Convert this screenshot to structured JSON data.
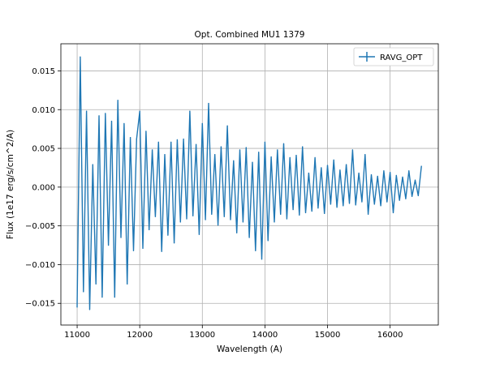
{
  "chart_data": {
    "type": "line",
    "title": "Opt. Combined MU1 1379",
    "xlabel": "Wavelength (A)",
    "ylabel": "Flux (1e17 erg/s/cm^2/A)",
    "xlim": [
      10740,
      16770
    ],
    "ylim": [
      -0.0178,
      0.0185
    ],
    "xticks": [
      11000,
      12000,
      13000,
      14000,
      15000,
      16000
    ],
    "xtick_labels": [
      "11000",
      "12000",
      "13000",
      "14000",
      "15000",
      "16000"
    ],
    "yticks": [
      -0.015,
      -0.01,
      -0.005,
      0.0,
      0.005,
      0.01,
      0.015
    ],
    "ytick_labels": [
      "−0.015",
      "−0.010",
      "−0.005",
      "0.000",
      "0.005",
      "0.010",
      "0.015"
    ],
    "grid": true,
    "legend": {
      "position": "top-right"
    },
    "series": [
      {
        "name": "RAVG_OPT",
        "color": "#1f77b4",
        "x": [
          11000,
          11050,
          11100,
          11150,
          11200,
          11250,
          11300,
          11350,
          11400,
          11450,
          11500,
          11550,
          11600,
          11650,
          11700,
          11750,
          11800,
          11850,
          11900,
          11950,
          12000,
          12050,
          12100,
          12150,
          12200,
          12250,
          12300,
          12350,
          12400,
          12450,
          12500,
          12550,
          12600,
          12650,
          12700,
          12750,
          12800,
          12850,
          12900,
          12950,
          13000,
          13050,
          13100,
          13150,
          13200,
          13250,
          13300,
          13350,
          13400,
          13450,
          13500,
          13550,
          13600,
          13650,
          13700,
          13750,
          13800,
          13850,
          13900,
          13950,
          14000,
          14050,
          14100,
          14150,
          14200,
          14250,
          14300,
          14350,
          14400,
          14450,
          14500,
          14550,
          14600,
          14650,
          14700,
          14750,
          14800,
          14850,
          14900,
          14950,
          15000,
          15050,
          15100,
          15150,
          15200,
          15250,
          15300,
          15350,
          15400,
          15450,
          15500,
          15550,
          15600,
          15650,
          15700,
          15750,
          15800,
          15850,
          15900,
          15950,
          16000,
          16050,
          16100,
          16150,
          16200,
          16250,
          16300,
          16350,
          16400,
          16450,
          16500
        ],
        "y": [
          -0.0155,
          0.0168,
          -0.0135,
          0.0098,
          -0.0158,
          0.0029,
          -0.0125,
          0.0092,
          -0.0142,
          0.0095,
          -0.0075,
          0.0085,
          -0.0142,
          0.0112,
          -0.0065,
          0.0082,
          -0.0125,
          0.0064,
          -0.0082,
          0.0062,
          0.0098,
          -0.0079,
          0.0072,
          -0.0055,
          0.0048,
          -0.0038,
          0.0058,
          -0.0083,
          0.0042,
          -0.0062,
          0.0058,
          -0.0072,
          0.0061,
          -0.0045,
          0.0062,
          -0.0041,
          0.0098,
          -0.0037,
          0.0055,
          -0.0061,
          0.0082,
          -0.0042,
          0.0108,
          -0.0035,
          0.0042,
          -0.0049,
          0.0052,
          -0.0038,
          0.0079,
          -0.0042,
          0.0034,
          -0.0059,
          0.0048,
          -0.0045,
          0.0051,
          -0.0065,
          0.0032,
          -0.0082,
          0.0045,
          -0.0093,
          0.0058,
          -0.0069,
          0.0039,
          -0.0045,
          0.0048,
          -0.0035,
          0.0056,
          -0.0041,
          0.0038,
          -0.0029,
          0.0041,
          -0.0036,
          0.0052,
          -0.0033,
          0.0018,
          -0.0031,
          0.0038,
          -0.0027,
          0.0025,
          -0.0034,
          0.0028,
          -0.0022,
          0.0035,
          -0.0026,
          0.0022,
          -0.0024,
          0.0029,
          -0.0021,
          0.0048,
          -0.0023,
          0.0018,
          -0.0019,
          0.0042,
          -0.0035,
          0.0016,
          -0.0022,
          0.0014,
          -0.0024,
          0.0021,
          -0.0019,
          0.0019,
          -0.0033,
          0.0015,
          -0.0017,
          0.0013,
          -0.0015,
          0.0021,
          -0.0012,
          0.0009,
          -0.0011,
          0.0027
        ]
      }
    ]
  }
}
